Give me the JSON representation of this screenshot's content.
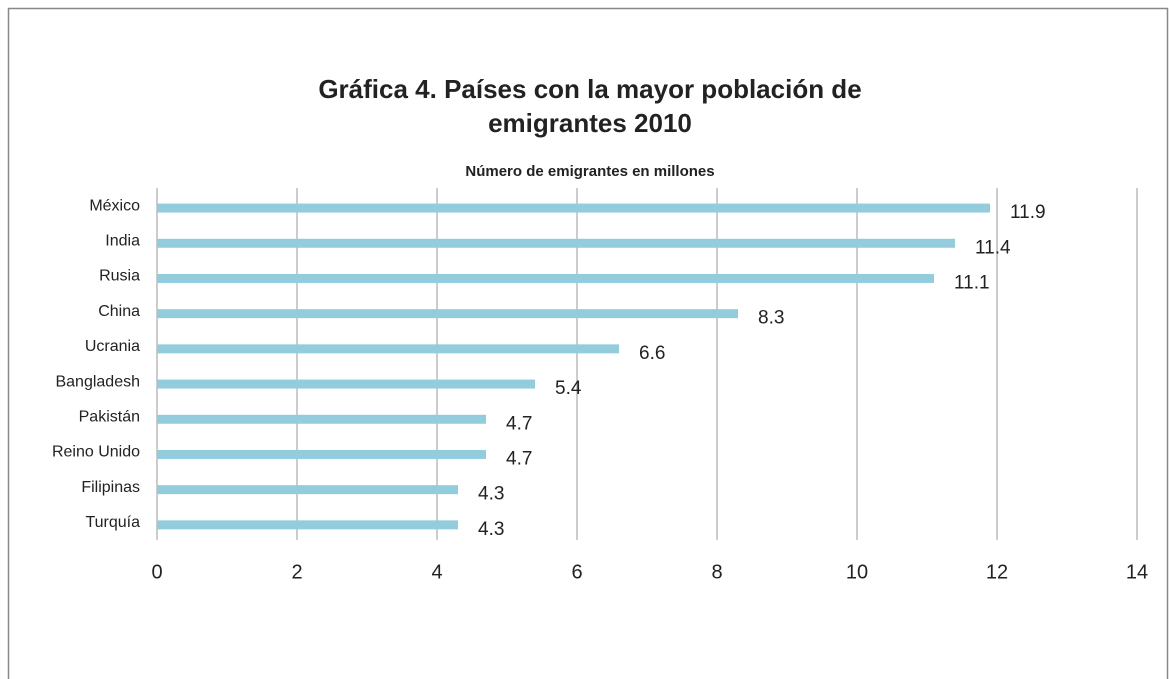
{
  "chart_data": {
    "type": "bar",
    "orientation": "horizontal",
    "title": [
      "Gráfica 4. Países con la mayor población de",
      "emigrantes 2010"
    ],
    "subtitle": "Número de emigrantes en millones",
    "categories": [
      "México",
      "India",
      "Rusia",
      "China",
      "Ucrania",
      "Bangladesh",
      "Pakistán",
      "Reino Unido",
      "Filipinas",
      "Turquía"
    ],
    "values": [
      11.9,
      11.4,
      11.1,
      8.3,
      6.6,
      5.4,
      4.7,
      4.7,
      4.3,
      4.3
    ],
    "color": "#93cddd",
    "xlim": [
      0,
      14
    ],
    "xticks": [
      0,
      2,
      4,
      6,
      8,
      10,
      12,
      14
    ],
    "grid": true
  }
}
